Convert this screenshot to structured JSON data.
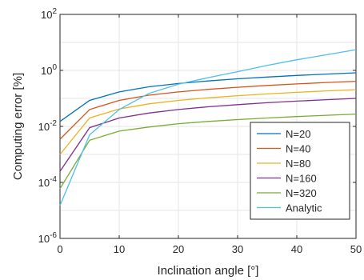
{
  "chart_data": {
    "type": "line",
    "title": "",
    "xlabel": "Inclination angle [°]",
    "ylabel": "Computing error [%]",
    "xlim": [
      0,
      50
    ],
    "ylim_log10": [
      -6,
      2
    ],
    "y_scale": "log",
    "grid": true,
    "legend_position": "bottom-right",
    "x_ticks": [
      "0",
      "10",
      "20",
      "30",
      "40",
      "50"
    ],
    "y_ticks": [
      {
        "base": "10",
        "exp": "-6"
      },
      {
        "base": "10",
        "exp": "-4"
      },
      {
        "base": "10",
        "exp": "-2"
      },
      {
        "base": "10",
        "exp": "0"
      },
      {
        "base": "10",
        "exp": "2"
      }
    ],
    "x": [
      0,
      5,
      10,
      15,
      20,
      25,
      30,
      35,
      40,
      45,
      50
    ],
    "series": [
      {
        "name": "N=20",
        "color": "#0072BD",
        "values": [
          0.015,
          0.085,
          0.17,
          0.26,
          0.34,
          0.42,
          0.5,
          0.58,
          0.66,
          0.74,
          0.82
        ]
      },
      {
        "name": "N=40",
        "color": "#D95319",
        "values": [
          0.0035,
          0.04,
          0.085,
          0.13,
          0.17,
          0.21,
          0.25,
          0.29,
          0.33,
          0.37,
          0.41
        ]
      },
      {
        "name": "N=80",
        "color": "#EDB120",
        "values": [
          0.001,
          0.02,
          0.042,
          0.064,
          0.085,
          0.105,
          0.125,
          0.145,
          0.165,
          0.185,
          0.205
        ]
      },
      {
        "name": "N=160",
        "color": "#7E2F8E",
        "values": [
          0.00025,
          0.009,
          0.02,
          0.03,
          0.04,
          0.05,
          0.06,
          0.07,
          0.08,
          0.09,
          0.1
        ]
      },
      {
        "name": "N=320",
        "color": "#77AC30",
        "values": [
          6e-05,
          0.0032,
          0.0068,
          0.0095,
          0.0125,
          0.015,
          0.0175,
          0.02,
          0.0225,
          0.025,
          0.0275
        ]
      },
      {
        "name": "Analytic",
        "color": "#4DBEEE",
        "values": [
          1.5e-05,
          0.005,
          0.04,
          0.15,
          0.32,
          0.55,
          0.9,
          1.5,
          2.4,
          3.6,
          5.5
        ]
      }
    ]
  }
}
